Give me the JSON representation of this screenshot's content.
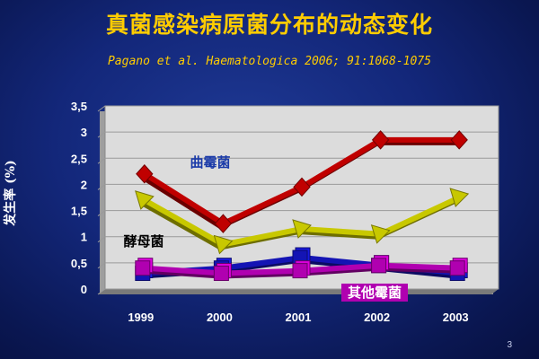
{
  "slide": {
    "title": "真菌感染病原菌分布的动态变化",
    "subtitle": "Pagano et al. Haematologica 2006; 91:1068-1075",
    "page_number": "3"
  },
  "colors": {
    "background": "#13277a",
    "title": "#ffcc00",
    "plot_area": "#dcdcdc",
    "grid": "#9a9a9a"
  },
  "chart_data": {
    "type": "line",
    "title": "",
    "xlabel": "",
    "ylabel": "发生率 (%)",
    "categories": [
      "1999",
      "2000",
      "2001",
      "2002",
      "2003"
    ],
    "ylim": [
      0,
      3.5
    ],
    "yticks": [
      {
        "value": 0,
        "label": "0"
      },
      {
        "value": 0.5,
        "label": "0,5"
      },
      {
        "value": 1,
        "label": "1"
      },
      {
        "value": 1.5,
        "label": "1,5"
      },
      {
        "value": 2,
        "label": "2"
      },
      {
        "value": 2.5,
        "label": "2,5"
      },
      {
        "value": 3,
        "label": "3"
      },
      {
        "value": 3.5,
        "label": "3,5"
      }
    ],
    "grid": true,
    "legend": "inline labels",
    "series": [
      {
        "name": "曲霉菌",
        "values": [
          2.2,
          1.25,
          1.95,
          2.85,
          2.85
        ],
        "color": "#c00000",
        "marker": "diamond",
        "label_color": "#1a3aa8",
        "label_bg": ""
      },
      {
        "name": "酵母菌",
        "values": [
          1.7,
          0.85,
          1.15,
          1.05,
          1.75
        ],
        "color": "#c8c800",
        "marker": "triangle",
        "label_color": "#000000",
        "label_bg": ""
      },
      {
        "name": "",
        "values": [
          0.3,
          0.4,
          0.6,
          0.45,
          0.3
        ],
        "color": "#1414b4",
        "marker": "square",
        "label_color": "",
        "label_bg": ""
      },
      {
        "name": "其他霉菌",
        "values": [
          0.4,
          0.3,
          0.35,
          0.45,
          0.4
        ],
        "color": "#b000b0",
        "marker": "square",
        "label_color": "#ffffff",
        "label_bg": "#b000b0"
      }
    ]
  }
}
